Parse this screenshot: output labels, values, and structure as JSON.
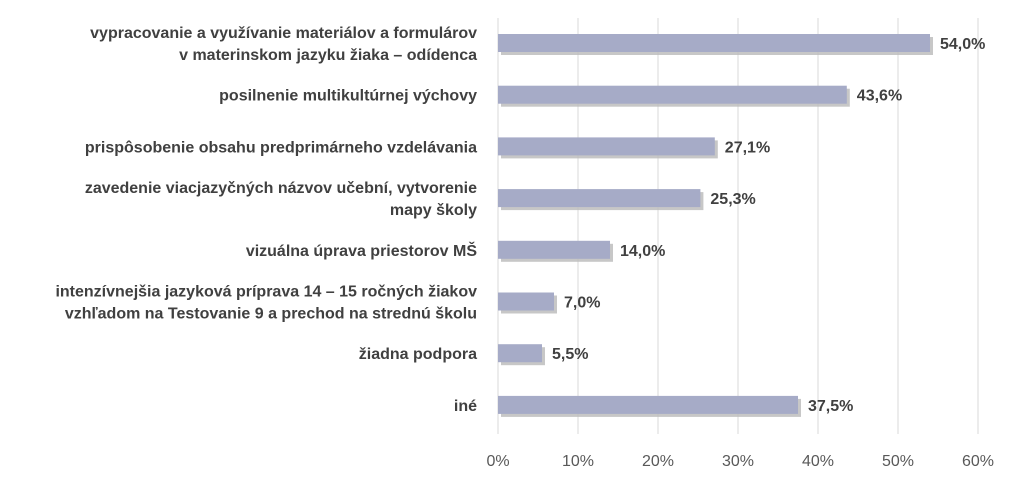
{
  "chart_data": {
    "type": "bar",
    "orientation": "horizontal",
    "categories": [
      [
        "vypracovanie a využívanie materiálov a formulárov",
        "v materinskom jazyku žiaka – odídenca"
      ],
      [
        "posilnenie multikultúrnej výchovy"
      ],
      [
        "prispôsobenie obsahu predprimárneho vzdelávania"
      ],
      [
        "zavedenie viacjazyčných názvov učební, vytvorenie",
        "mapy školy"
      ],
      [
        "vizuálna úprava priestorov MŠ"
      ],
      [
        "intenzívnejšia jazyková príprava 14 – 15 ročných žiakov",
        "vzhľadom na Testovanie 9 a prechod na strednú školu"
      ],
      [
        "žiadna podpora"
      ],
      [
        "iné"
      ]
    ],
    "values": [
      54.0,
      43.6,
      27.1,
      25.3,
      14.0,
      7.0,
      5.5,
      37.5
    ],
    "value_labels": [
      "54,0%",
      "43,6%",
      "27,1%",
      "25,3%",
      "14,0%",
      "7,0%",
      "5,5%",
      "37,5%"
    ],
    "xlim": [
      0,
      60
    ],
    "x_ticks": [
      0,
      10,
      20,
      30,
      40,
      50,
      60
    ],
    "x_tick_labels": [
      "0%",
      "10%",
      "20%",
      "30%",
      "40%",
      "50%",
      "60%"
    ],
    "grid": "vertical",
    "legend": "none",
    "bar_color": "#a6abc7",
    "shadow_color": "#bdbdbd",
    "grid_color": "#d9d9d9"
  }
}
